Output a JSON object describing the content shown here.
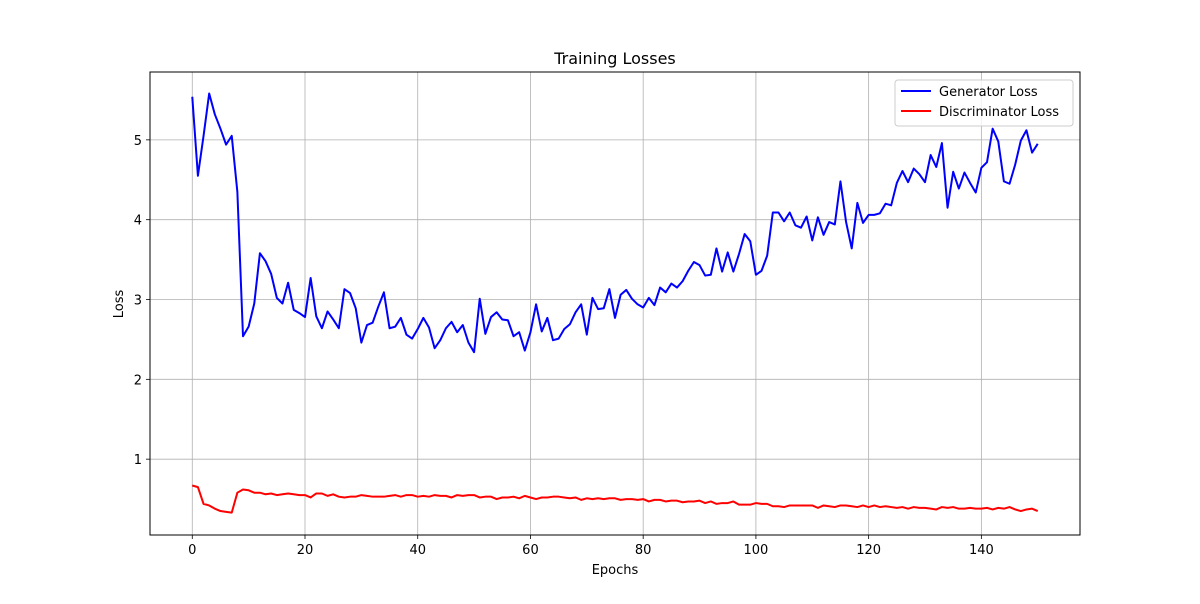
{
  "chart_data": {
    "type": "line",
    "title": "Training Losses",
    "xlabel": "Epochs",
    "ylabel": "Loss",
    "xlim": [
      -7.5,
      157.5
    ],
    "ylim": [
      0.05,
      5.85
    ],
    "xticks": [
      0,
      20,
      40,
      60,
      80,
      100,
      120,
      140
    ],
    "yticks": [
      1,
      2,
      3,
      4,
      5
    ],
    "grid": true,
    "legend_position": "top-right",
    "series": [
      {
        "name": "Generator Loss",
        "color": "#0000ff",
        "x": [
          0,
          1,
          2,
          3,
          4,
          5,
          6,
          7,
          8,
          9,
          10,
          11,
          12,
          13,
          14,
          15,
          16,
          17,
          18,
          19,
          20,
          21,
          22,
          23,
          24,
          25,
          26,
          27,
          28,
          29,
          30,
          31,
          32,
          33,
          34,
          35,
          36,
          37,
          38,
          39,
          40,
          41,
          42,
          43,
          44,
          45,
          46,
          47,
          48,
          49,
          50,
          51,
          52,
          53,
          54,
          55,
          56,
          57,
          58,
          59,
          60,
          61,
          62,
          63,
          64,
          65,
          66,
          67,
          68,
          69,
          70,
          71,
          72,
          73,
          74,
          75,
          76,
          77,
          78,
          79,
          80,
          81,
          82,
          83,
          84,
          85,
          86,
          87,
          88,
          89,
          90,
          91,
          92,
          93,
          94,
          95,
          96,
          97,
          98,
          99,
          100,
          101,
          102,
          103,
          104,
          105,
          106,
          107,
          108,
          109,
          110,
          111,
          112,
          113,
          114,
          115,
          116,
          117,
          118,
          119,
          120,
          121,
          122,
          123,
          124,
          125,
          126,
          127,
          128,
          129,
          130,
          131,
          132,
          133,
          134,
          135,
          136,
          137,
          138,
          139,
          140,
          141,
          142,
          143,
          144,
          145,
          146,
          147,
          148,
          149,
          150
        ],
        "values": [
          5.54,
          4.55,
          5.05,
          5.58,
          5.32,
          5.14,
          4.94,
          5.05,
          4.35,
          2.54,
          2.66,
          2.95,
          3.58,
          3.48,
          3.32,
          3.02,
          2.95,
          3.21,
          2.87,
          2.83,
          2.78,
          3.27,
          2.79,
          2.64,
          2.85,
          2.75,
          2.64,
          3.13,
          3.08,
          2.89,
          2.46,
          2.68,
          2.71,
          2.91,
          3.09,
          2.64,
          2.66,
          2.77,
          2.56,
          2.51,
          2.63,
          2.77,
          2.65,
          2.39,
          2.49,
          2.64,
          2.72,
          2.59,
          2.68,
          2.46,
          2.34,
          3.01,
          2.57,
          2.78,
          2.84,
          2.75,
          2.74,
          2.54,
          2.59,
          2.36,
          2.59,
          2.94,
          2.6,
          2.77,
          2.49,
          2.51,
          2.63,
          2.69,
          2.84,
          2.94,
          2.56,
          3.02,
          2.88,
          2.89,
          3.13,
          2.77,
          3.06,
          3.12,
          3.01,
          2.94,
          2.9,
          3.02,
          2.93,
          3.15,
          3.09,
          3.2,
          3.15,
          3.23,
          3.36,
          3.47,
          3.43,
          3.3,
          3.31,
          3.64,
          3.35,
          3.59,
          3.35,
          3.57,
          3.82,
          3.73,
          3.31,
          3.36,
          3.55,
          4.09,
          4.09,
          3.98,
          4.09,
          3.93,
          3.9,
          4.04,
          3.74,
          4.03,
          3.81,
          3.97,
          3.94,
          4.48,
          3.97,
          3.64,
          4.21,
          3.96,
          4.06,
          4.06,
          4.08,
          4.2,
          4.18,
          4.46,
          4.61,
          4.47,
          4.64,
          4.57,
          4.47,
          4.81,
          4.66,
          4.96,
          4.15,
          4.6,
          4.39,
          4.59,
          4.46,
          4.34,
          4.65,
          4.72,
          5.14,
          4.98,
          4.48,
          4.45,
          4.69,
          4.99,
          5.12,
          4.84,
          4.95
        ]
      },
      {
        "name": "Discriminator Loss",
        "color": "#ff0000",
        "x": [
          0,
          1,
          2,
          3,
          4,
          5,
          6,
          7,
          8,
          9,
          10,
          11,
          12,
          13,
          14,
          15,
          16,
          17,
          18,
          19,
          20,
          21,
          22,
          23,
          24,
          25,
          26,
          27,
          28,
          29,
          30,
          31,
          32,
          33,
          34,
          35,
          36,
          37,
          38,
          39,
          40,
          41,
          42,
          43,
          44,
          45,
          46,
          47,
          48,
          49,
          50,
          51,
          52,
          53,
          54,
          55,
          56,
          57,
          58,
          59,
          60,
          61,
          62,
          63,
          64,
          65,
          66,
          67,
          68,
          69,
          70,
          71,
          72,
          73,
          74,
          75,
          76,
          77,
          78,
          79,
          80,
          81,
          82,
          83,
          84,
          85,
          86,
          87,
          88,
          89,
          90,
          91,
          92,
          93,
          94,
          95,
          96,
          97,
          98,
          99,
          100,
          101,
          102,
          103,
          104,
          105,
          106,
          107,
          108,
          109,
          110,
          111,
          112,
          113,
          114,
          115,
          116,
          117,
          118,
          119,
          120,
          121,
          122,
          123,
          124,
          125,
          126,
          127,
          128,
          129,
          130,
          131,
          132,
          133,
          134,
          135,
          136,
          137,
          138,
          139,
          140,
          141,
          142,
          143,
          144,
          145,
          146,
          147,
          148,
          149,
          150
        ],
        "values": [
          0.67,
          0.65,
          0.44,
          0.42,
          0.38,
          0.35,
          0.34,
          0.33,
          0.58,
          0.62,
          0.61,
          0.58,
          0.58,
          0.56,
          0.57,
          0.55,
          0.56,
          0.57,
          0.56,
          0.55,
          0.55,
          0.52,
          0.57,
          0.57,
          0.54,
          0.56,
          0.53,
          0.52,
          0.53,
          0.53,
          0.55,
          0.54,
          0.53,
          0.53,
          0.53,
          0.54,
          0.55,
          0.53,
          0.55,
          0.55,
          0.53,
          0.54,
          0.53,
          0.55,
          0.54,
          0.54,
          0.52,
          0.55,
          0.54,
          0.55,
          0.55,
          0.52,
          0.53,
          0.53,
          0.5,
          0.52,
          0.52,
          0.53,
          0.51,
          0.54,
          0.52,
          0.5,
          0.52,
          0.52,
          0.53,
          0.53,
          0.52,
          0.51,
          0.52,
          0.49,
          0.51,
          0.5,
          0.51,
          0.5,
          0.51,
          0.51,
          0.49,
          0.5,
          0.5,
          0.49,
          0.5,
          0.47,
          0.49,
          0.49,
          0.47,
          0.48,
          0.48,
          0.46,
          0.47,
          0.47,
          0.48,
          0.45,
          0.47,
          0.44,
          0.45,
          0.45,
          0.47,
          0.43,
          0.43,
          0.43,
          0.45,
          0.44,
          0.44,
          0.41,
          0.41,
          0.4,
          0.42,
          0.42,
          0.42,
          0.42,
          0.42,
          0.39,
          0.42,
          0.41,
          0.4,
          0.42,
          0.42,
          0.41,
          0.4,
          0.42,
          0.4,
          0.42,
          0.4,
          0.41,
          0.4,
          0.39,
          0.4,
          0.38,
          0.4,
          0.39,
          0.39,
          0.38,
          0.37,
          0.4,
          0.39,
          0.4,
          0.38,
          0.38,
          0.39,
          0.38,
          0.38,
          0.39,
          0.37,
          0.39,
          0.38,
          0.4,
          0.37,
          0.35,
          0.37,
          0.38,
          0.35
        ]
      }
    ]
  }
}
